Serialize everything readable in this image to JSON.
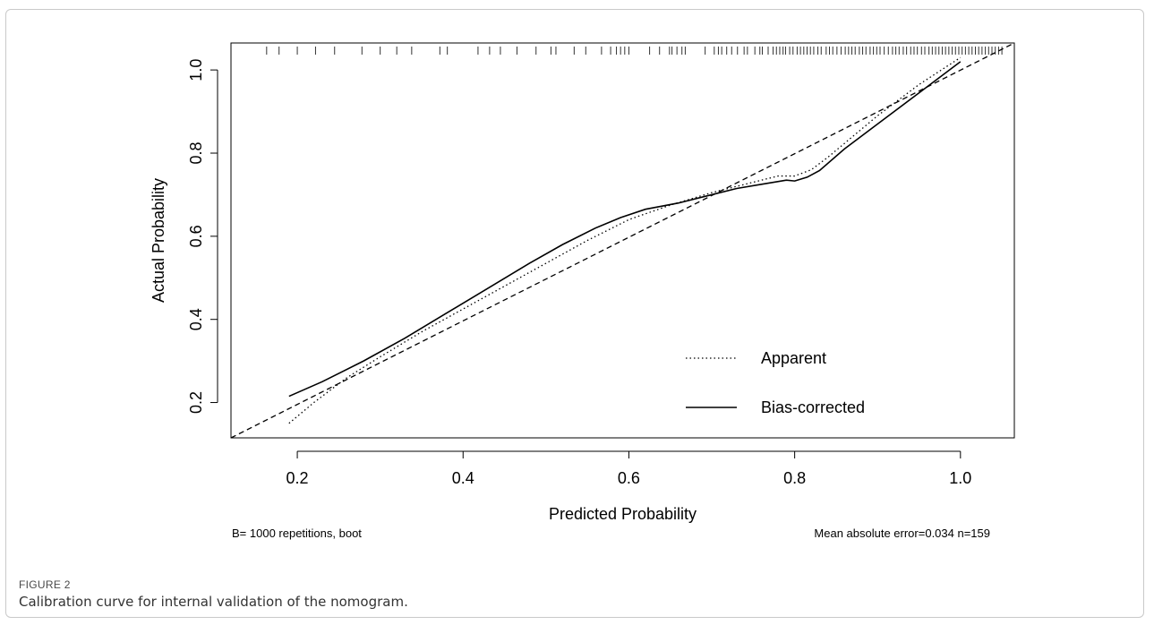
{
  "figure": {
    "label": "FIGURE 2",
    "caption": "Calibration curve for internal validation of the nomogram."
  },
  "chart_data": {
    "type": "line",
    "xlabel": "Predicted Probability",
    "ylabel": "Actual Probability",
    "xlim": [
      0.12,
      1.065
    ],
    "ylim": [
      0.115,
      1.065
    ],
    "xticks": [
      "0.2",
      "0.4",
      "0.6",
      "0.8",
      "1.0"
    ],
    "yticks": [
      "0.2",
      "0.4",
      "0.6",
      "0.8",
      "1.0"
    ],
    "grid": false,
    "legend_position": "bottom-right",
    "series": [
      {
        "name": "Apparent",
        "style": "dotted",
        "x": [
          0.19,
          0.22,
          0.26,
          0.3,
          0.35,
          0.4,
          0.45,
          0.5,
          0.55,
          0.6,
          0.65,
          0.7,
          0.72,
          0.75,
          0.78,
          0.8,
          0.82,
          0.84,
          0.87,
          0.9,
          0.95,
          1.0
        ],
        "y": [
          0.15,
          0.2,
          0.26,
          0.31,
          0.37,
          0.425,
          0.48,
          0.535,
          0.59,
          0.64,
          0.675,
          0.705,
          0.715,
          0.73,
          0.745,
          0.745,
          0.76,
          0.79,
          0.84,
          0.89,
          0.965,
          1.03
        ]
      },
      {
        "name": "Bias-corrected",
        "style": "solid",
        "x": [
          0.19,
          0.23,
          0.28,
          0.33,
          0.38,
          0.43,
          0.48,
          0.52,
          0.56,
          0.59,
          0.62,
          0.66,
          0.7,
          0.73,
          0.76,
          0.79,
          0.8,
          0.815,
          0.83,
          0.86,
          0.9,
          0.95,
          1.0
        ],
        "y": [
          0.215,
          0.25,
          0.3,
          0.355,
          0.415,
          0.475,
          0.535,
          0.58,
          0.62,
          0.645,
          0.665,
          0.68,
          0.7,
          0.715,
          0.725,
          0.735,
          0.733,
          0.742,
          0.758,
          0.81,
          0.87,
          0.945,
          1.02
        ]
      },
      {
        "name": "",
        "style": "dashed",
        "x": [
          0.12,
          1.065
        ],
        "y": [
          0.115,
          1.065
        ]
      }
    ],
    "rug": [
      0.163,
      0.178,
      0.2,
      0.222,
      0.245,
      0.278,
      0.3,
      0.32,
      0.338,
      0.372,
      0.381,
      0.418,
      0.432,
      0.445,
      0.465,
      0.488,
      0.506,
      0.512,
      0.534,
      0.548,
      0.567,
      0.578,
      0.585,
      0.59,
      0.595,
      0.6,
      0.625,
      0.637,
      0.649,
      0.652,
      0.658,
      0.664,
      0.668,
      0.692,
      0.703,
      0.708,
      0.712,
      0.718,
      0.724,
      0.731,
      0.739,
      0.743,
      0.752,
      0.758,
      0.761,
      0.768,
      0.774,
      0.778,
      0.782,
      0.786,
      0.789,
      0.794,
      0.798,
      0.803,
      0.807,
      0.811,
      0.815,
      0.819,
      0.823,
      0.828,
      0.832,
      0.838,
      0.842,
      0.846,
      0.851,
      0.856,
      0.861,
      0.865,
      0.869,
      0.873,
      0.878,
      0.882,
      0.886,
      0.891,
      0.895,
      0.899,
      0.903,
      0.908,
      0.913,
      0.918,
      0.922,
      0.926,
      0.931,
      0.935,
      0.94,
      0.944,
      0.948,
      0.953,
      0.957,
      0.962,
      0.966,
      0.97,
      0.974,
      0.978,
      0.982,
      0.986,
      0.99,
      0.994,
      0.998,
      1.002,
      1.006,
      1.01,
      1.014,
      1.018,
      1.022,
      1.026,
      1.03,
      1.034,
      1.038,
      1.042,
      1.046,
      1.05
    ],
    "annotations": {
      "bottom_left": "B= 1000 repetitions, boot",
      "bottom_right": "Mean absolute error=0.034 n=159"
    }
  }
}
